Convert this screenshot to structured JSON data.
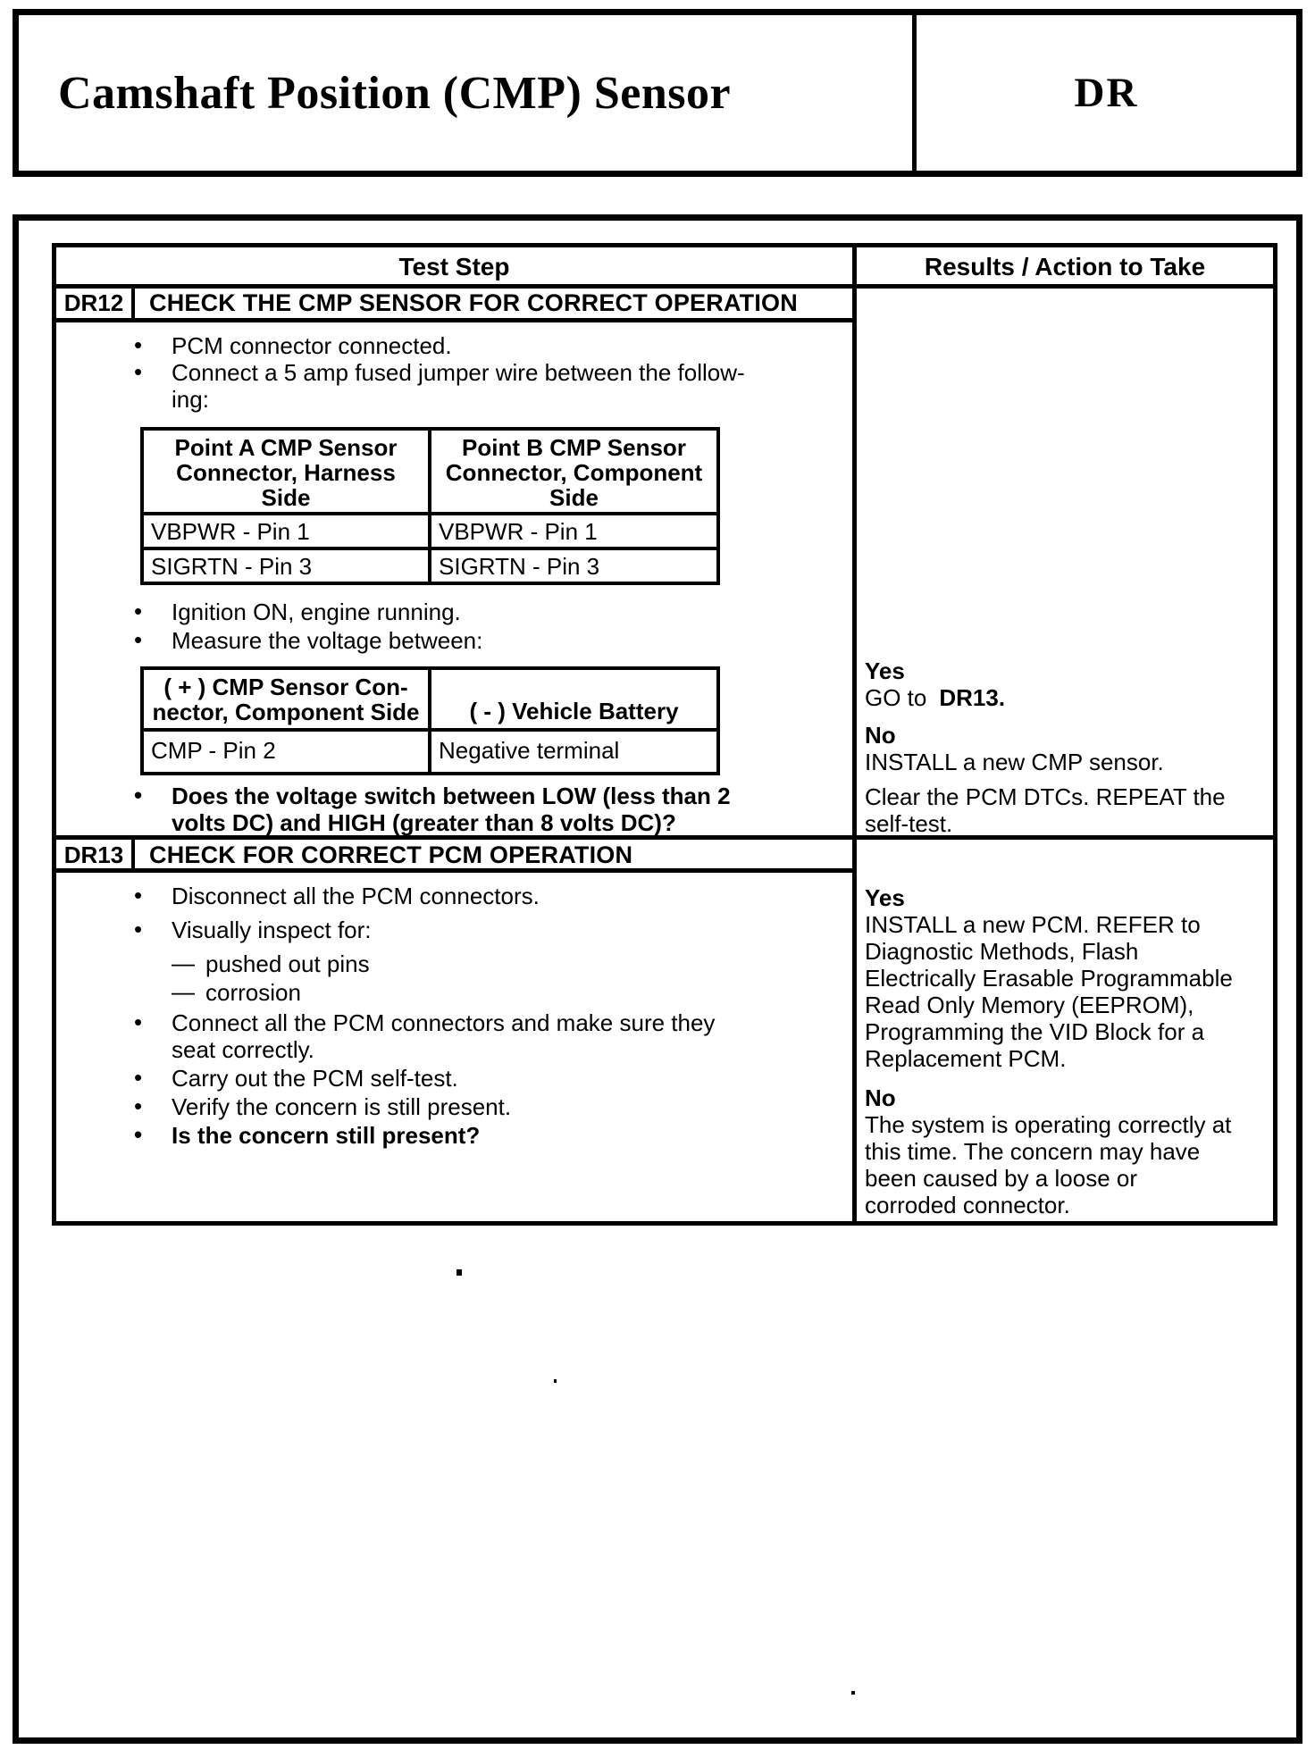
{
  "header": {
    "title": "Camshaft Position (CMP) Sensor",
    "code": "DR"
  },
  "table": {
    "test_step_header": "Test Step",
    "results_header": "Results / Action to Take",
    "dr12": {
      "id": "DR12",
      "title": "CHECK THE CMP SENSOR FOR CORRECT OPERATION",
      "bullet1": "PCM connector connected.",
      "bullet2": "Connect a 5 amp fused jumper wire between the follow-\ning:",
      "pin_table": {
        "head_a": "Point A CMP Sensor\nConnector, Harness\nSide",
        "head_b": "Point B CMP Sensor\nConnector, Component\nSide",
        "rows": [
          [
            "VBPWR - Pin 1",
            "VBPWR - Pin 1"
          ],
          [
            "SIGRTN - Pin 3",
            "SIGRTN - Pin 3"
          ]
        ]
      },
      "bullet3": "Ignition ON, engine running.",
      "bullet4": "Measure the voltage between:",
      "volt_table": {
        "head_a": "( + ) CMP Sensor Con-\nnector, Component Side",
        "head_b": "( - ) Vehicle Battery",
        "rows": [
          [
            "CMP - Pin 2",
            "Negative terminal"
          ]
        ]
      },
      "question": "Does the voltage switch between LOW (less than 2\nvolts DC) and HIGH (greater than 8 volts DC)?",
      "results": {
        "yes_label": "Yes",
        "yes_prefix": "GO to",
        "yes_target": "DR13.",
        "no_label": "No",
        "no_line1": "INSTALL a new CMP sensor.",
        "no_line2": "Clear the PCM DTCs. REPEAT the\nself-test."
      }
    },
    "dr13": {
      "id": "DR13",
      "title": "CHECK FOR CORRECT PCM OPERATION",
      "bullet1": "Disconnect all the PCM connectors.",
      "bullet2": "Visually inspect for:",
      "sub1": "pushed out pins",
      "sub2": "corrosion",
      "bullet3": "Connect all the PCM connectors and make sure they\nseat correctly.",
      "bullet4": "Carry out the PCM self-test.",
      "bullet5": "Verify the concern is still present.",
      "question": "Is the concern still present?",
      "results": {
        "yes_label": "Yes",
        "yes_text": "INSTALL a new PCM. REFER to\nDiagnostic Methods, Flash\nElectrically Erasable Programmable\nRead Only Memory (EEPROM),\nProgramming the VID Block for a\nReplacement PCM.",
        "no_label": "No",
        "no_text": "The system is operating correctly at\nthis time. The concern may have\nbeen caused by a loose or\ncorroded connector."
      }
    }
  }
}
